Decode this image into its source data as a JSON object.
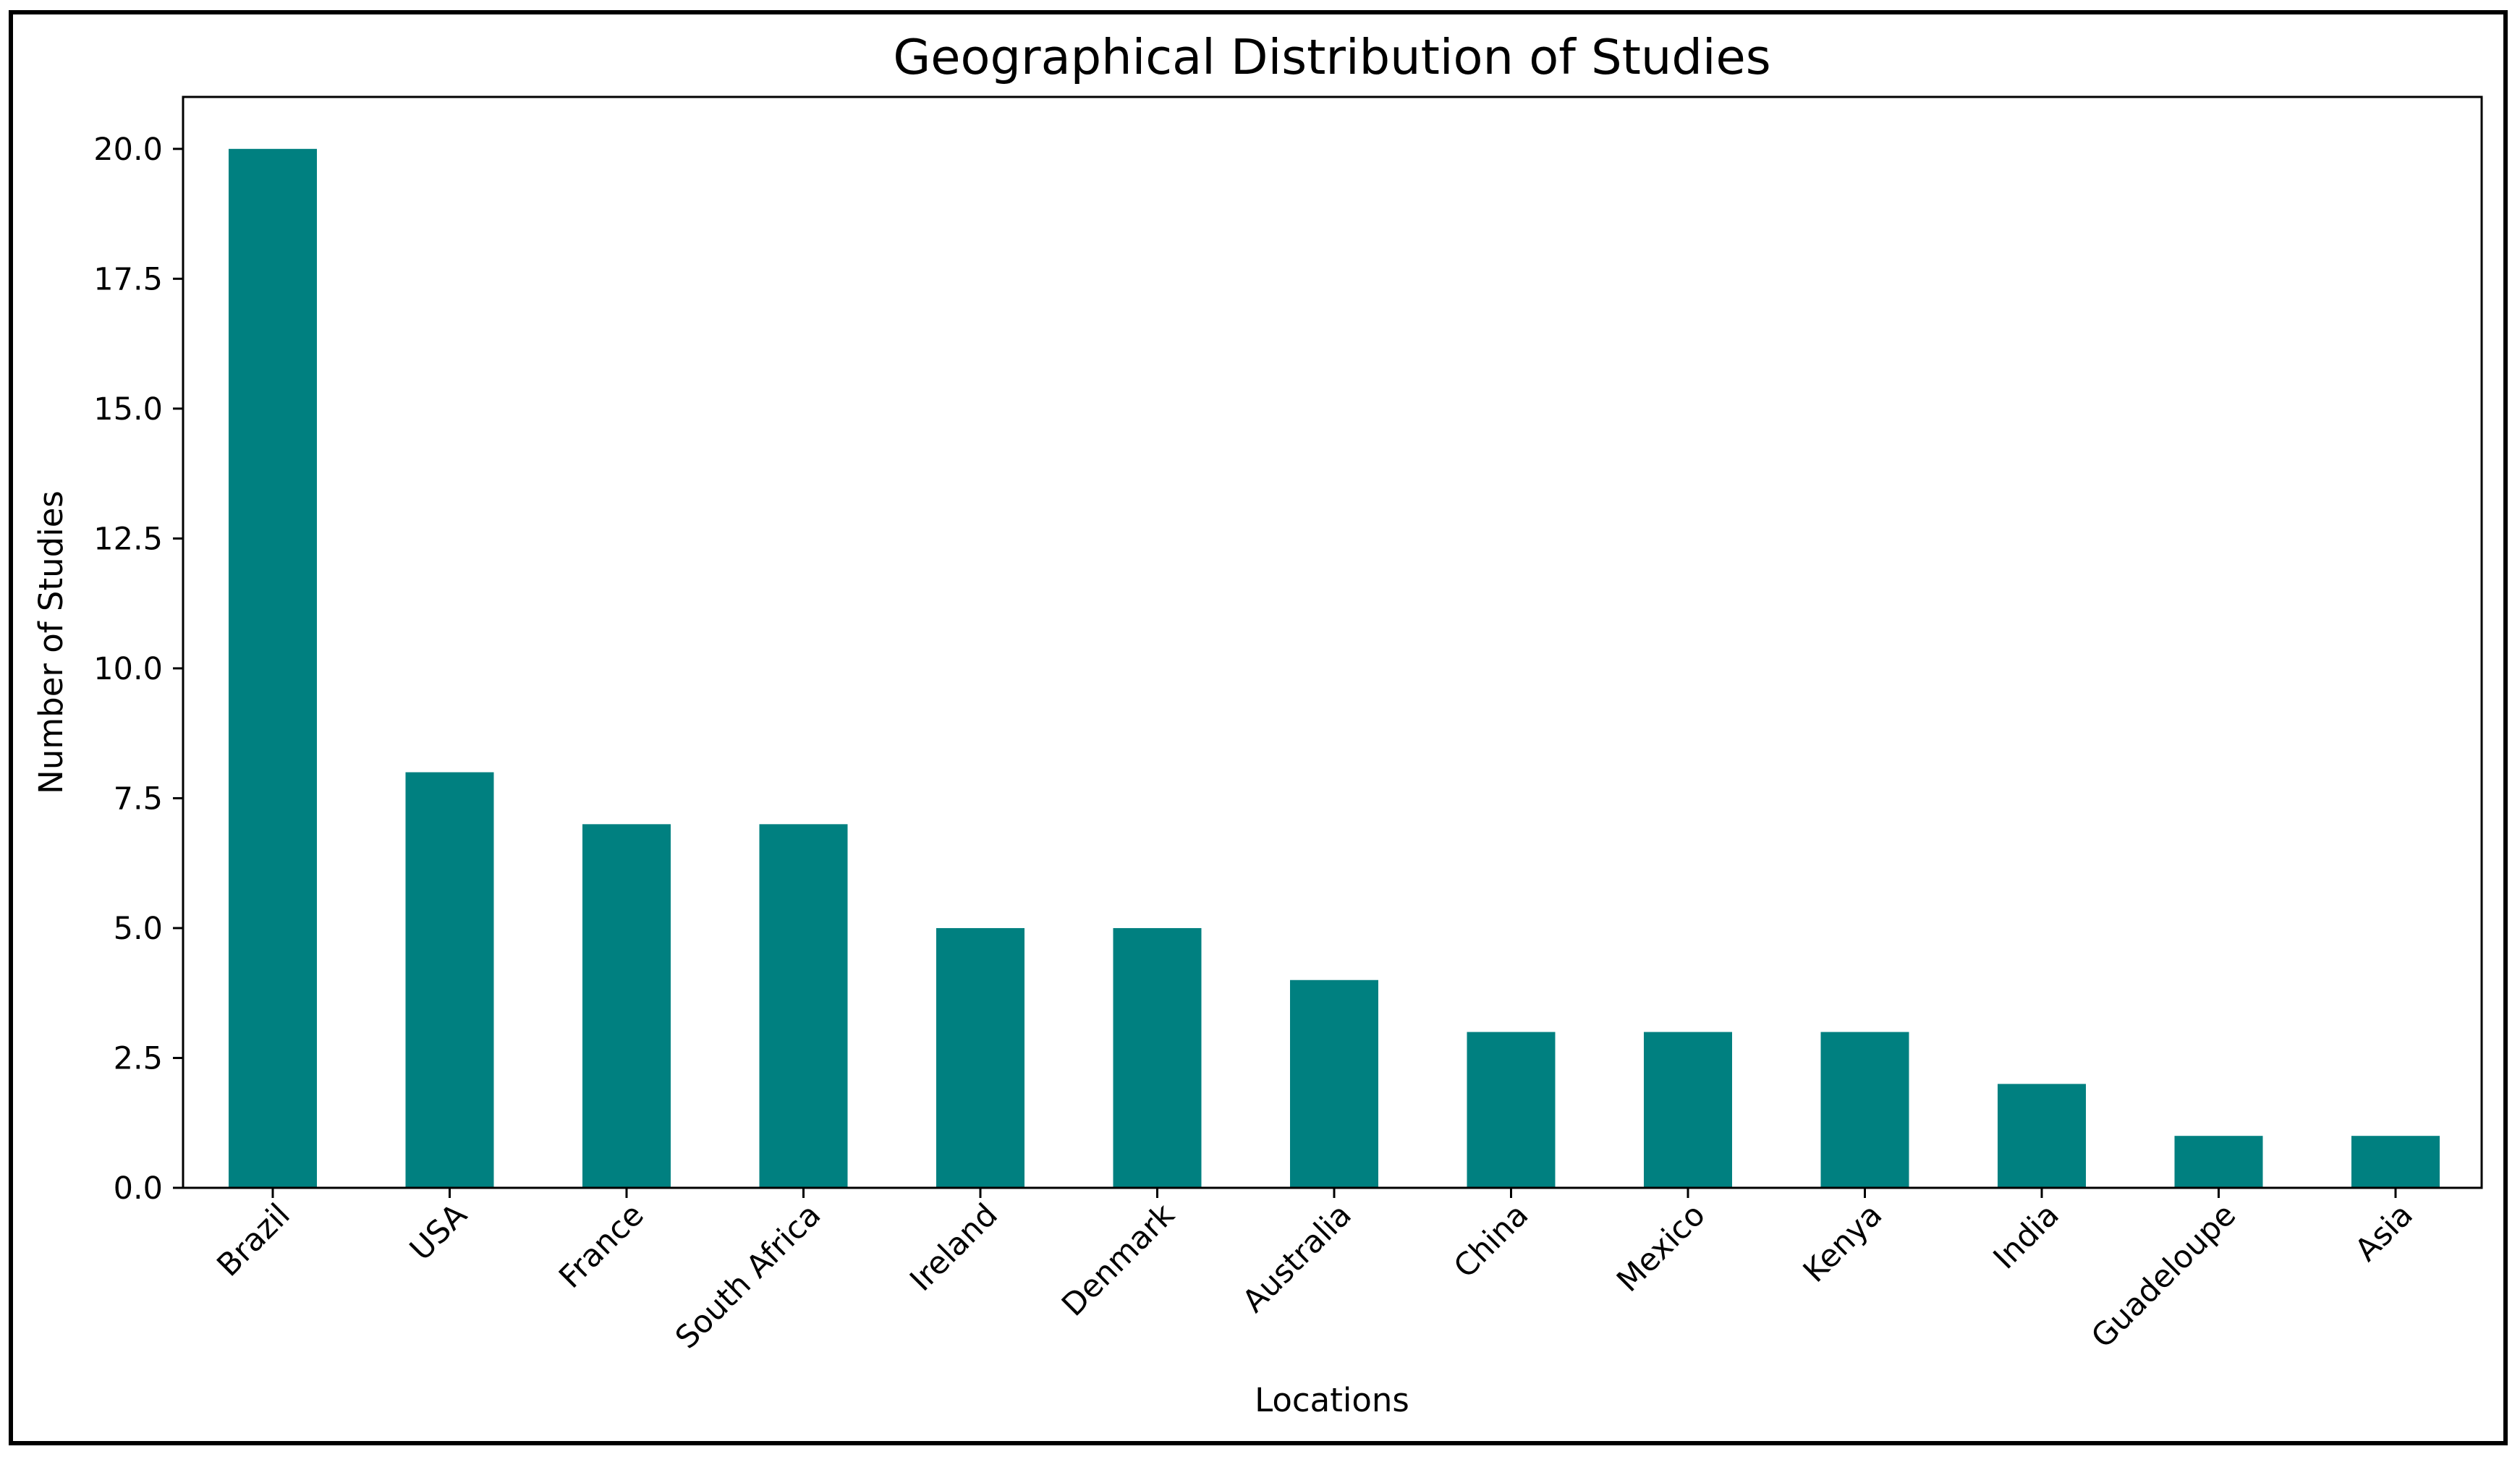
{
  "chart_data": {
    "type": "bar",
    "title": "Geographical Distribution of Studies",
    "xlabel": "Locations",
    "ylabel": "Number of Studies",
    "categories": [
      "Brazil",
      "USA",
      "France",
      "South Africa",
      "Ireland",
      "Denmark",
      "Australia",
      "China",
      "Mexico",
      "Kenya",
      "India",
      "Guadeloupe",
      "Asia"
    ],
    "values": [
      20,
      8,
      7,
      7,
      5,
      5,
      4,
      3,
      3,
      3,
      2,
      1,
      1
    ],
    "ylim": [
      0,
      21
    ],
    "yticks": [
      "0.0",
      "2.5",
      "5.0",
      "7.5",
      "10.0",
      "12.5",
      "15.0",
      "17.5",
      "20.0"
    ],
    "bar_color": "#008080",
    "grid": false,
    "legend": "none"
  }
}
